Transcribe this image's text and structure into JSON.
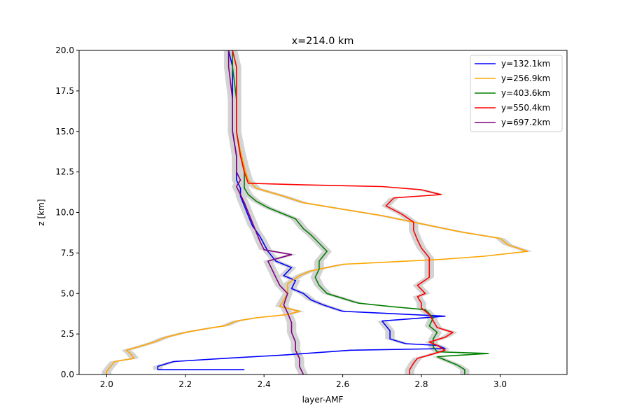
{
  "chart_data": {
    "type": "line",
    "title": "x=214.0 km",
    "xlabel": "layer-AMF",
    "ylabel": "z [km]",
    "xlim": [
      1.93,
      3.17
    ],
    "ylim": [
      0,
      20
    ],
    "xticks": [
      2.0,
      2.2,
      2.4,
      2.6,
      2.8,
      3.0
    ],
    "xtick_labels": [
      "2.0",
      "2.2",
      "2.4",
      "2.6",
      "2.8",
      "3.0"
    ],
    "yticks": [
      0,
      2.5,
      5,
      7.5,
      10,
      12.5,
      15,
      17.5,
      20
    ],
    "ytick_labels": [
      "0.0",
      "2.5",
      "5.0",
      "7.5",
      "10.0",
      "12.5",
      "15.0",
      "17.5",
      "20.0"
    ],
    "grid": false,
    "legend_position": "top-right",
    "uncertainty_band": {
      "color": "#d3d3d3",
      "halfwidth": 0.012
    },
    "series": [
      {
        "name": "y=132.1km",
        "color": "#0000ff",
        "points": [
          [
            2.35,
            0.3
          ],
          [
            2.22,
            0.3
          ],
          [
            2.13,
            0.3
          ],
          [
            2.13,
            0.5
          ],
          [
            2.17,
            0.8
          ],
          [
            2.3,
            1.0
          ],
          [
            2.45,
            1.2
          ],
          [
            2.62,
            1.5
          ],
          [
            2.86,
            1.6
          ],
          [
            2.84,
            1.8
          ],
          [
            2.76,
            1.9
          ],
          [
            2.72,
            2.2
          ],
          [
            2.72,
            2.7
          ],
          [
            2.7,
            3.3
          ],
          [
            2.86,
            3.6
          ],
          [
            2.6,
            3.9
          ],
          [
            2.55,
            4.3
          ],
          [
            2.52,
            4.6
          ],
          [
            2.5,
            5.0
          ],
          [
            2.47,
            5.3
          ],
          [
            2.48,
            5.8
          ],
          [
            2.45,
            6.1
          ],
          [
            2.47,
            6.6
          ],
          [
            2.43,
            7.0
          ],
          [
            2.41,
            7.6
          ],
          [
            2.39,
            8.5
          ],
          [
            2.37,
            9.2
          ],
          [
            2.36,
            9.8
          ],
          [
            2.35,
            10.4
          ],
          [
            2.34,
            11.0
          ],
          [
            2.34,
            11.5
          ],
          [
            2.33,
            12.0
          ],
          [
            2.33,
            12.5
          ],
          [
            2.33,
            13.5
          ],
          [
            2.32,
            15
          ],
          [
            2.32,
            17
          ],
          [
            2.32,
            19
          ],
          [
            2.31,
            20
          ]
        ]
      },
      {
        "name": "y=256.9km",
        "color": "#ffa500",
        "points": [
          [
            2.0,
            0.0
          ],
          [
            2.0,
            0.2
          ],
          [
            2.01,
            0.5
          ],
          [
            2.02,
            0.8
          ],
          [
            2.07,
            1.0
          ],
          [
            2.06,
            1.3
          ],
          [
            2.05,
            1.5
          ],
          [
            2.08,
            1.7
          ],
          [
            2.12,
            2.0
          ],
          [
            2.15,
            2.3
          ],
          [
            2.2,
            2.6
          ],
          [
            2.27,
            2.9
          ],
          [
            2.3,
            3.0
          ],
          [
            2.33,
            3.3
          ],
          [
            2.38,
            3.5
          ],
          [
            2.46,
            3.7
          ],
          [
            2.49,
            3.9
          ],
          [
            2.44,
            4.2
          ],
          [
            2.45,
            4.6
          ],
          [
            2.46,
            5.0
          ],
          [
            2.46,
            5.6
          ],
          [
            2.49,
            6.1
          ],
          [
            2.52,
            6.4
          ],
          [
            2.6,
            6.8
          ],
          [
            2.85,
            7.1
          ],
          [
            2.96,
            7.3
          ],
          [
            3.07,
            7.6
          ],
          [
            3.02,
            8.0
          ],
          [
            3.0,
            8.4
          ],
          [
            2.9,
            8.8
          ],
          [
            2.8,
            9.3
          ],
          [
            2.7,
            9.8
          ],
          [
            2.6,
            10.2
          ],
          [
            2.5,
            10.6
          ],
          [
            2.45,
            11.0
          ],
          [
            2.38,
            11.5
          ],
          [
            2.36,
            12.0
          ],
          [
            2.35,
            12.8
          ],
          [
            2.34,
            13.8
          ],
          [
            2.33,
            15
          ],
          [
            2.33,
            17
          ],
          [
            2.33,
            19
          ],
          [
            2.32,
            20
          ]
        ]
      },
      {
        "name": "y=403.6km",
        "color": "#008000",
        "points": [
          [
            2.91,
            0.0
          ],
          [
            2.91,
            0.3
          ],
          [
            2.89,
            0.6
          ],
          [
            2.86,
            0.9
          ],
          [
            2.84,
            1.1
          ],
          [
            2.97,
            1.3
          ],
          [
            2.84,
            1.4
          ],
          [
            2.83,
            1.7
          ],
          [
            2.83,
            2.2
          ],
          [
            2.84,
            2.6
          ],
          [
            2.82,
            3.0
          ],
          [
            2.83,
            3.5
          ],
          [
            2.81,
            4.0
          ],
          [
            2.72,
            4.2
          ],
          [
            2.64,
            4.4
          ],
          [
            2.6,
            4.7
          ],
          [
            2.56,
            5.0
          ],
          [
            2.54,
            5.5
          ],
          [
            2.53,
            6.0
          ],
          [
            2.54,
            6.5
          ],
          [
            2.54,
            7.0
          ],
          [
            2.56,
            7.6
          ],
          [
            2.54,
            8.1
          ],
          [
            2.52,
            8.6
          ],
          [
            2.5,
            9.0
          ],
          [
            2.48,
            9.6
          ],
          [
            2.44,
            10.0
          ],
          [
            2.41,
            10.3
          ],
          [
            2.38,
            10.7
          ],
          [
            2.36,
            11.1
          ],
          [
            2.35,
            11.5
          ],
          [
            2.35,
            12.0
          ],
          [
            2.35,
            12.5
          ],
          [
            2.34,
            13.5
          ],
          [
            2.33,
            15
          ],
          [
            2.33,
            17
          ],
          [
            2.32,
            19
          ],
          [
            2.32,
            20
          ]
        ]
      },
      {
        "name": "y=550.4km",
        "color": "#ff0000",
        "points": [
          [
            2.77,
            0.0
          ],
          [
            2.77,
            0.3
          ],
          [
            2.78,
            0.7
          ],
          [
            2.79,
            1.0
          ],
          [
            2.82,
            1.2
          ],
          [
            2.86,
            1.5
          ],
          [
            2.84,
            1.8
          ],
          [
            2.82,
            2.0
          ],
          [
            2.86,
            2.3
          ],
          [
            2.88,
            2.6
          ],
          [
            2.84,
            2.9
          ],
          [
            2.83,
            3.3
          ],
          [
            2.82,
            3.7
          ],
          [
            2.8,
            4.1
          ],
          [
            2.8,
            4.4
          ],
          [
            2.79,
            4.8
          ],
          [
            2.81,
            5.0
          ],
          [
            2.79,
            5.5
          ],
          [
            2.82,
            6.0
          ],
          [
            2.82,
            6.5
          ],
          [
            2.82,
            7.2
          ],
          [
            2.8,
            7.8
          ],
          [
            2.79,
            8.3
          ],
          [
            2.78,
            8.9
          ],
          [
            2.78,
            9.4
          ],
          [
            2.75,
            9.9
          ],
          [
            2.71,
            10.4
          ],
          [
            2.73,
            10.9
          ],
          [
            2.85,
            11.1
          ],
          [
            2.8,
            11.4
          ],
          [
            2.7,
            11.6
          ],
          [
            2.5,
            11.7
          ],
          [
            2.36,
            11.8
          ],
          [
            2.35,
            12.5
          ],
          [
            2.34,
            13.5
          ],
          [
            2.33,
            15
          ],
          [
            2.33,
            17
          ],
          [
            2.33,
            19
          ],
          [
            2.32,
            20
          ]
        ]
      },
      {
        "name": "y=697.2km",
        "color": "#800080",
        "points": [
          [
            2.5,
            0.0
          ],
          [
            2.49,
            0.5
          ],
          [
            2.49,
            1.0
          ],
          [
            2.48,
            1.5
          ],
          [
            2.48,
            2.0
          ],
          [
            2.47,
            2.6
          ],
          [
            2.47,
            3.2
          ],
          [
            2.46,
            3.8
          ],
          [
            2.45,
            4.3
          ],
          [
            2.46,
            5.0
          ],
          [
            2.44,
            5.5
          ],
          [
            2.43,
            6.0
          ],
          [
            2.42,
            6.5
          ],
          [
            2.41,
            7.0
          ],
          [
            2.47,
            7.4
          ],
          [
            2.4,
            7.7
          ],
          [
            2.39,
            8.2
          ],
          [
            2.38,
            8.8
          ],
          [
            2.37,
            9.4
          ],
          [
            2.36,
            10.0
          ],
          [
            2.35,
            10.6
          ],
          [
            2.34,
            11.1
          ],
          [
            2.33,
            11.6
          ],
          [
            2.34,
            12.0
          ],
          [
            2.33,
            12.5
          ],
          [
            2.33,
            13.5
          ],
          [
            2.32,
            15
          ],
          [
            2.32,
            17
          ],
          [
            2.31,
            19
          ],
          [
            2.31,
            20
          ]
        ]
      }
    ]
  }
}
